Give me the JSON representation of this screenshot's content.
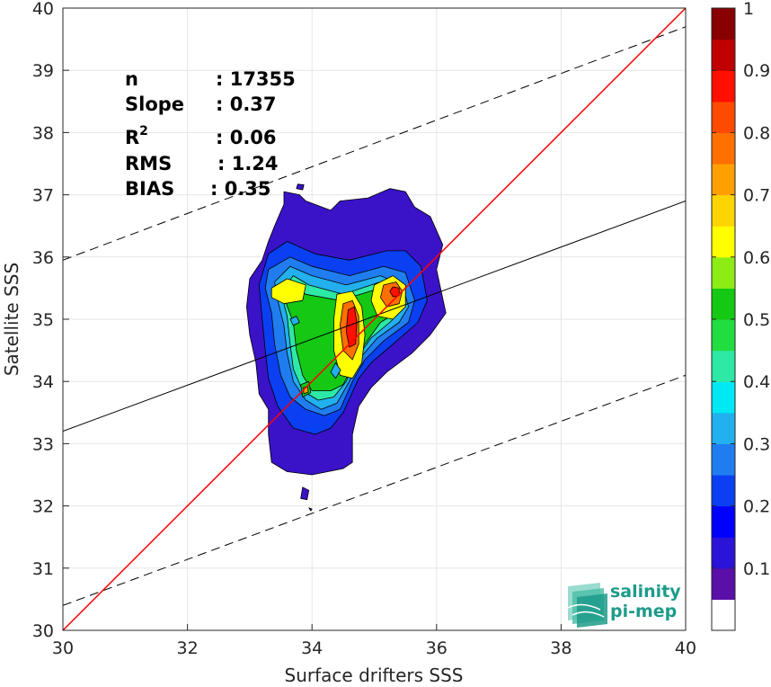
{
  "chart_data": {
    "type": "heatmap",
    "xlabel": "Surface drifters SSS",
    "ylabel": "Satellite SSS",
    "xlim": [
      30,
      40
    ],
    "ylim": [
      30,
      40
    ],
    "x_ticks": [
      "30",
      "32",
      "34",
      "36",
      "38",
      "40"
    ],
    "y_ticks": [
      "30",
      "31",
      "32",
      "33",
      "34",
      "35",
      "36",
      "37",
      "38",
      "39",
      "40"
    ],
    "grid": true,
    "stats": [
      {
        "label": "n",
        "value": ": 17355"
      },
      {
        "label": "Slope",
        "value": ": 0.37"
      },
      {
        "label": "R",
        "sup": "2",
        "value": ": 0.06"
      },
      {
        "label": "RMS",
        "value": ": 1.24"
      },
      {
        "label": "BIAS",
        "value": ": 0.35"
      }
    ],
    "lines": {
      "identity": {
        "slope": 1,
        "intercept": 0,
        "color": "#ff0000"
      },
      "regression": {
        "x": [
          30,
          40
        ],
        "y": [
          33.2,
          36.9
        ],
        "color": "#000000"
      },
      "upper_bound": {
        "x": [
          30,
          40
        ],
        "y": [
          35.95,
          39.7
        ],
        "color": "#000000",
        "style": "dashed"
      },
      "lower_bound": {
        "x": [
          30,
          40
        ],
        "y": [
          30.4,
          34.1
        ],
        "color": "#000000",
        "style": "dashed"
      }
    },
    "colorbar": {
      "tick_labels": [
        "0.1",
        "0.2",
        "0.3",
        "0.4",
        "0.5",
        "0.6",
        "0.7",
        "0.8",
        "0.9",
        "1"
      ],
      "tick_values": [
        0.1,
        0.2,
        0.3,
        0.4,
        0.5,
        0.6,
        0.7,
        0.8,
        0.9,
        1.0
      ],
      "colors": [
        "#ffffff",
        "#5a0fa8",
        "#2b14d8",
        "#0000ff",
        "#0a40f2",
        "#1f7df0",
        "#22b0ee",
        "#00e8f4",
        "#2ee8a6",
        "#22dd40",
        "#14c814",
        "#8cec14",
        "#ffff00",
        "#ffd400",
        "#ffa000",
        "#ff7000",
        "#ff4a00",
        "#ff1000",
        "#c00000",
        "#880000"
      ]
    },
    "density_levels": [
      {
        "level": 0.05,
        "color": "#3a12c8",
        "polygon": [
          [
            33.55,
            37.05
          ],
          [
            33.8,
            37.0
          ],
          [
            33.9,
            36.9
          ],
          [
            34.3,
            36.75
          ],
          [
            34.45,
            36.9
          ],
          [
            34.9,
            36.95
          ],
          [
            35.25,
            37.1
          ],
          [
            35.5,
            37.05
          ],
          [
            35.65,
            36.8
          ],
          [
            35.9,
            36.65
          ],
          [
            36.1,
            36.2
          ],
          [
            36.0,
            35.8
          ],
          [
            36.15,
            35.1
          ],
          [
            35.9,
            34.75
          ],
          [
            35.6,
            34.45
          ],
          [
            35.2,
            34.15
          ],
          [
            34.95,
            33.9
          ],
          [
            34.75,
            33.6
          ],
          [
            34.65,
            33.15
          ],
          [
            34.65,
            32.7
          ],
          [
            34.5,
            32.6
          ],
          [
            34.0,
            32.5
          ],
          [
            33.6,
            32.55
          ],
          [
            33.35,
            32.7
          ],
          [
            33.3,
            33.15
          ],
          [
            33.3,
            33.55
          ],
          [
            33.15,
            33.8
          ],
          [
            33.1,
            34.3
          ],
          [
            33.0,
            34.75
          ],
          [
            32.95,
            35.2
          ],
          [
            33.0,
            35.65
          ],
          [
            33.2,
            35.95
          ],
          [
            33.3,
            36.25
          ],
          [
            33.4,
            36.5
          ],
          [
            33.55,
            36.85
          ]
        ]
      },
      {
        "level": 0.1,
        "color": "#0a40f2",
        "polygon": [
          [
            33.3,
            36.05
          ],
          [
            33.6,
            36.25
          ],
          [
            34.05,
            36.05
          ],
          [
            34.6,
            35.95
          ],
          [
            35.2,
            36.1
          ],
          [
            35.5,
            36.1
          ],
          [
            35.75,
            35.85
          ],
          [
            35.85,
            35.3
          ],
          [
            35.7,
            34.95
          ],
          [
            35.3,
            34.6
          ],
          [
            34.95,
            34.3
          ],
          [
            34.75,
            34.05
          ],
          [
            34.5,
            33.5
          ],
          [
            34.3,
            33.25
          ],
          [
            34.05,
            33.15
          ],
          [
            33.7,
            33.25
          ],
          [
            33.45,
            33.6
          ],
          [
            33.3,
            34.05
          ],
          [
            33.25,
            34.5
          ],
          [
            33.2,
            35.0
          ],
          [
            33.15,
            35.55
          ]
        ]
      },
      {
        "level": 0.2,
        "color": "#1f7df0",
        "polygon": [
          [
            33.3,
            35.8
          ],
          [
            33.65,
            36.0
          ],
          [
            34.0,
            35.85
          ],
          [
            34.6,
            35.7
          ],
          [
            35.15,
            35.85
          ],
          [
            35.5,
            35.75
          ],
          [
            35.65,
            35.3
          ],
          [
            35.55,
            34.95
          ],
          [
            35.15,
            34.65
          ],
          [
            34.85,
            34.35
          ],
          [
            34.65,
            34.0
          ],
          [
            34.45,
            33.55
          ],
          [
            34.2,
            33.45
          ],
          [
            33.9,
            33.55
          ],
          [
            33.65,
            33.75
          ],
          [
            33.5,
            34.1
          ],
          [
            33.4,
            34.6
          ],
          [
            33.35,
            35.1
          ],
          [
            33.25,
            35.5
          ]
        ]
      },
      {
        "level": 0.3,
        "color": "#22b0ee",
        "polygon": [
          [
            33.4,
            35.6
          ],
          [
            33.65,
            35.85
          ],
          [
            34.0,
            35.7
          ],
          [
            34.55,
            35.55
          ],
          [
            35.1,
            35.7
          ],
          [
            35.45,
            35.55
          ],
          [
            35.55,
            35.2
          ],
          [
            35.4,
            34.95
          ],
          [
            35.05,
            34.7
          ],
          [
            34.75,
            34.35
          ],
          [
            34.6,
            34.0
          ],
          [
            34.4,
            33.65
          ],
          [
            34.15,
            33.55
          ],
          [
            33.9,
            33.7
          ],
          [
            33.7,
            34.0
          ],
          [
            33.6,
            34.45
          ],
          [
            33.55,
            34.9
          ],
          [
            33.45,
            35.3
          ]
        ]
      },
      {
        "level": 0.4,
        "color": "#2ee8a6",
        "polygon": [
          [
            33.5,
            35.45
          ],
          [
            33.7,
            35.7
          ],
          [
            33.95,
            35.55
          ],
          [
            34.5,
            35.4
          ],
          [
            35.1,
            35.6
          ],
          [
            35.4,
            35.45
          ],
          [
            35.45,
            35.15
          ],
          [
            35.25,
            34.95
          ],
          [
            34.95,
            34.7
          ],
          [
            34.7,
            34.35
          ],
          [
            34.55,
            34.0
          ],
          [
            34.35,
            33.75
          ],
          [
            34.1,
            33.7
          ],
          [
            33.85,
            33.85
          ],
          [
            33.7,
            34.2
          ],
          [
            33.65,
            34.6
          ],
          [
            33.6,
            35.05
          ]
        ]
      },
      {
        "level": 0.5,
        "color": "#14c814",
        "polygon": [
          [
            33.55,
            35.35
          ],
          [
            33.7,
            35.55
          ],
          [
            33.9,
            35.4
          ],
          [
            34.45,
            35.3
          ],
          [
            35.1,
            35.5
          ],
          [
            35.35,
            35.35
          ],
          [
            35.35,
            35.1
          ],
          [
            35.1,
            34.95
          ],
          [
            34.85,
            34.6
          ],
          [
            34.65,
            34.25
          ],
          [
            34.5,
            33.95
          ],
          [
            34.3,
            33.85
          ],
          [
            34.0,
            33.85
          ],
          [
            33.85,
            34.1
          ],
          [
            33.75,
            34.5
          ],
          [
            33.7,
            34.95
          ]
        ]
      },
      {
        "level": 0.6,
        "color": "#ffff00",
        "polygon": [
          [
            34.4,
            35.4
          ],
          [
            34.65,
            35.45
          ],
          [
            34.8,
            35.2
          ],
          [
            34.85,
            34.75
          ],
          [
            34.8,
            34.3
          ],
          [
            34.65,
            34.05
          ],
          [
            34.45,
            34.1
          ],
          [
            34.35,
            34.5
          ],
          [
            34.35,
            35.0
          ]
        ]
      },
      {
        "level": 0.6,
        "color": "#ffff00",
        "polygon": [
          [
            35.0,
            35.55
          ],
          [
            35.3,
            35.7
          ],
          [
            35.5,
            35.55
          ],
          [
            35.5,
            35.2
          ],
          [
            35.3,
            35.0
          ],
          [
            35.05,
            35.05
          ],
          [
            34.95,
            35.3
          ]
        ]
      },
      {
        "level": 0.6,
        "color": "#ffff00",
        "polygon": [
          [
            33.35,
            35.5
          ],
          [
            33.6,
            35.65
          ],
          [
            33.9,
            35.55
          ],
          [
            33.85,
            35.3
          ],
          [
            33.55,
            35.25
          ],
          [
            33.35,
            35.35
          ]
        ]
      },
      {
        "level": 0.8,
        "color": "#ff7000",
        "polygon": [
          [
            34.5,
            35.25
          ],
          [
            34.65,
            35.3
          ],
          [
            34.75,
            35.05
          ],
          [
            34.75,
            34.6
          ],
          [
            34.65,
            34.35
          ],
          [
            34.5,
            34.5
          ],
          [
            34.45,
            34.9
          ]
        ]
      },
      {
        "level": 0.8,
        "color": "#ff7000",
        "polygon": [
          [
            35.15,
            35.55
          ],
          [
            35.35,
            35.6
          ],
          [
            35.45,
            35.45
          ],
          [
            35.4,
            35.25
          ],
          [
            35.2,
            35.2
          ],
          [
            35.1,
            35.35
          ]
        ]
      },
      {
        "level": 0.9,
        "color": "#ff1000",
        "polygon": [
          [
            34.58,
            35.15
          ],
          [
            34.68,
            35.2
          ],
          [
            34.72,
            34.95
          ],
          [
            34.7,
            34.6
          ],
          [
            34.6,
            34.55
          ],
          [
            34.55,
            34.8
          ]
        ]
      },
      {
        "level": 0.9,
        "color": "#ff1000",
        "polygon": [
          [
            35.3,
            35.52
          ],
          [
            35.4,
            35.5
          ],
          [
            35.4,
            35.38
          ],
          [
            35.3,
            35.36
          ],
          [
            35.25,
            35.45
          ]
        ]
      },
      {
        "level": 0.5,
        "color": "#14c814",
        "polygon": [
          [
            33.82,
            33.95
          ],
          [
            33.95,
            34.0
          ],
          [
            33.98,
            33.82
          ],
          [
            33.85,
            33.75
          ]
        ]
      },
      {
        "level": 0.7,
        "color": "#ffa000",
        "polygon": [
          [
            33.86,
            33.9
          ],
          [
            33.93,
            33.92
          ],
          [
            33.94,
            33.83
          ],
          [
            33.87,
            33.8
          ]
        ]
      },
      {
        "level": 0.3,
        "color": "#22b0ee",
        "polygon": [
          [
            34.3,
            34.15
          ],
          [
            34.38,
            34.3
          ],
          [
            34.46,
            34.18
          ],
          [
            34.38,
            34.05
          ]
        ]
      },
      {
        "level": 0.3,
        "color": "#22b0ee",
        "polygon": [
          [
            33.65,
            35.0
          ],
          [
            33.75,
            35.05
          ],
          [
            33.8,
            34.95
          ],
          [
            33.7,
            34.9
          ]
        ]
      },
      {
        "level": 0.05,
        "color": "#3a12c8",
        "polygon": [
          [
            33.77,
            37.17
          ],
          [
            33.87,
            37.16
          ],
          [
            33.85,
            37.08
          ],
          [
            33.75,
            37.1
          ]
        ]
      },
      {
        "level": 0.05,
        "color": "#3a12c8",
        "polygon": [
          [
            33.85,
            32.3
          ],
          [
            33.95,
            32.25
          ],
          [
            33.92,
            32.1
          ],
          [
            33.82,
            32.12
          ]
        ]
      },
      {
        "level": 0.05,
        "color": "#3a12c8",
        "polygon": [
          [
            33.95,
            31.97
          ],
          [
            34.0,
            31.95
          ],
          [
            33.98,
            31.92
          ]
        ]
      }
    ]
  },
  "logo": {
    "line1": "salinity",
    "line2": "pi-mep"
  }
}
